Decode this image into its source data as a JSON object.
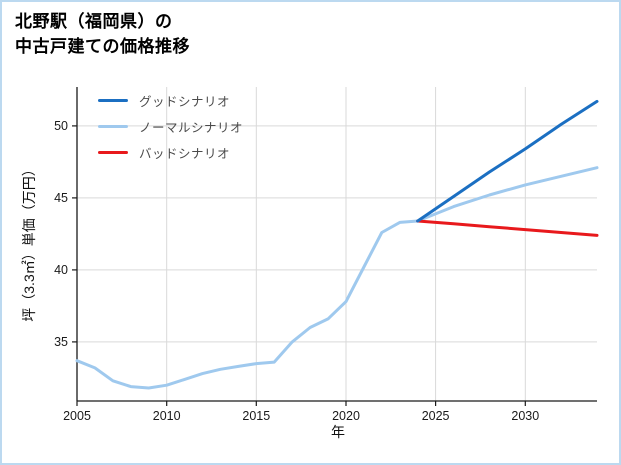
{
  "title": {
    "line1": "北野駅（福岡県）の",
    "line2": "中古戸建ての価格推移"
  },
  "chart_data": {
    "type": "line",
    "title": "北野駅（福岡県）の中古戸建ての価格推移",
    "xlabel": "年",
    "ylabel": "坪（3.3㎡）単価（万円）",
    "xlim": [
      2005,
      2034
    ],
    "ylim": [
      30.9,
      52.7
    ],
    "xticks": [
      2005,
      2010,
      2015,
      2020,
      2025,
      2030
    ],
    "yticks": [
      35,
      40,
      45,
      50
    ],
    "grid": true,
    "legend_position": "upper-left",
    "series": [
      {
        "name": "グッドシナリオ",
        "color": "#1b6fc2",
        "x": [
          2024,
          2026,
          2028,
          2030,
          2032,
          2034
        ],
        "values": [
          43.4,
          45.1,
          46.8,
          48.4,
          50.1,
          51.7
        ]
      },
      {
        "name": "ノーマルシナリオ",
        "color": "#9fc9ee",
        "x": [
          2005,
          2006,
          2007,
          2008,
          2009,
          2010,
          2011,
          2012,
          2013,
          2014,
          2015,
          2016,
          2017,
          2018,
          2019,
          2020,
          2021,
          2022,
          2023,
          2024,
          2026,
          2028,
          2030,
          2032,
          2034
        ],
        "values": [
          33.7,
          33.2,
          32.3,
          31.9,
          31.8,
          32.0,
          32.4,
          32.8,
          33.1,
          33.3,
          33.5,
          33.6,
          35.0,
          36.0,
          36.6,
          37.8,
          40.2,
          42.6,
          43.3,
          43.4,
          44.4,
          45.2,
          45.9,
          46.5,
          47.1
        ]
      },
      {
        "name": "バッドシナリオ",
        "color": "#e8191c",
        "x": [
          2024,
          2026,
          2028,
          2030,
          2032,
          2034
        ],
        "values": [
          43.4,
          43.2,
          43.0,
          42.8,
          42.6,
          42.4
        ]
      }
    ]
  },
  "colors": {
    "frame_border": "#bcd9f0",
    "grid": "#d9d9d9",
    "axis": "#1a1a1a"
  }
}
